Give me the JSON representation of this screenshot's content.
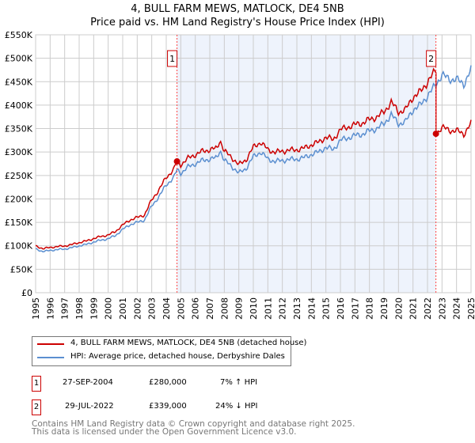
{
  "title": "4, BULL FARM MEWS, MATLOCK, DE4 5NB",
  "subtitle": "Price paid vs. HM Land Registry's House Price Index (HPI)",
  "chart_data": {
    "type": "line",
    "title": "4, BULL FARM MEWS, MATLOCK, DE4 5NB",
    "subtitle": "Price paid vs. HM Land Registry's House Price Index (HPI)",
    "xlim": [
      1995,
      2025
    ],
    "ylim": [
      0,
      550000
    ],
    "yticks": [
      0,
      50000,
      100000,
      150000,
      200000,
      250000,
      300000,
      350000,
      400000,
      450000,
      500000,
      550000
    ],
    "ytick_labels": [
      "£0",
      "£50K",
      "£100K",
      "£150K",
      "£200K",
      "£250K",
      "£300K",
      "£350K",
      "£400K",
      "£450K",
      "£500K",
      "£550K"
    ],
    "xticks": [
      "1995",
      "1996",
      "1997",
      "1998",
      "1999",
      "2000",
      "2001",
      "2002",
      "2003",
      "2004",
      "2005",
      "2006",
      "2007",
      "2008",
      "2009",
      "2010",
      "2011",
      "2012",
      "2013",
      "2014",
      "2015",
      "2016",
      "2017",
      "2018",
      "2019",
      "2020",
      "2021",
      "2022",
      "2023",
      "2024",
      "2025"
    ],
    "grid": true,
    "colors": {
      "property": "#cc0000",
      "hpi": "#5b8fd0",
      "shade": "#eef3fc"
    },
    "hpi": {
      "name": "HPI: Average price, detached house, Derbyshire Dales",
      "x": [
        1995,
        1995.5,
        1996,
        1996.5,
        1997,
        1997.5,
        1998,
        1998.5,
        1999,
        1999.5,
        2000,
        2000.5,
        2001,
        2001.5,
        2002,
        2002.5,
        2003,
        2003.5,
        2004,
        2004.5,
        2004.75,
        2005,
        2005.5,
        2006,
        2006.5,
        2007,
        2007.5,
        2007.7,
        2008,
        2008.5,
        2009,
        2009.5,
        2010,
        2010.5,
        2011,
        2011.5,
        2012,
        2012.5,
        2013,
        2013.5,
        2014,
        2014.5,
        2015,
        2015.5,
        2016,
        2016.5,
        2017,
        2017.5,
        2018,
        2018.5,
        2019,
        2019.5,
        2020,
        2020.5,
        2021,
        2021.5,
        2022,
        2022.5,
        2023,
        2023.5,
        2024,
        2024.5,
        2025
      ],
      "y": [
        93000,
        88000,
        90000,
        92000,
        93000,
        96000,
        100000,
        103000,
        108000,
        112000,
        115000,
        122000,
        135000,
        145000,
        150000,
        155000,
        185000,
        205000,
        230000,
        245000,
        262000,
        255000,
        268000,
        275000,
        282000,
        285000,
        288000,
        305000,
        282000,
        270000,
        255000,
        265000,
        290000,
        300000,
        285000,
        280000,
        282000,
        284000,
        285000,
        288000,
        295000,
        300000,
        310000,
        305000,
        325000,
        330000,
        335000,
        338000,
        345000,
        350000,
        360000,
        380000,
        360000,
        365000,
        390000,
        400000,
        420000,
        440000,
        465000,
        455000,
        455000,
        445000,
        475000
      ]
    },
    "property": {
      "name": "4, BULL FARM MEWS, MATLOCK, DE4 5NB (detached house)",
      "ratio_before": 1.07,
      "ratio_after": 0.76,
      "change_x": 2022.58
    },
    "sales": [
      {
        "id": "1",
        "x": 2004.74,
        "y": 280000
      },
      {
        "id": "2",
        "x": 2022.58,
        "y": 339000
      }
    ],
    "shade_range": [
      2004.74,
      2022.58
    ],
    "legend_position": "below"
  },
  "legend": {
    "property": "4, BULL FARM MEWS, MATLOCK, DE4 5NB (detached house)",
    "hpi": "HPI: Average price, detached house, Derbyshire Dales"
  },
  "transactions": [
    {
      "id": "1",
      "date": "27-SEP-2004",
      "price": "£280,000",
      "hpi": "7% ↑ HPI"
    },
    {
      "id": "2",
      "date": "29-JUL-2022",
      "price": "£339,000",
      "hpi": "24% ↓ HPI"
    }
  ],
  "footer": [
    "Contains HM Land Registry data © Crown copyright and database right 2025.",
    "This data is licensed under the Open Government Licence v3.0."
  ]
}
